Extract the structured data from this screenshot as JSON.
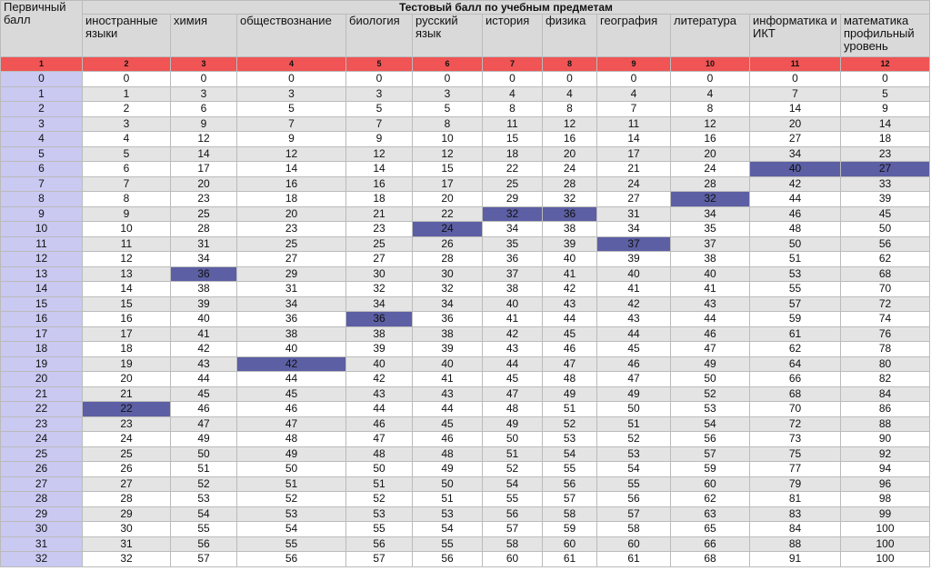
{
  "table": {
    "corner": "Первичный балл",
    "title": "Тестовый балл по учебным предметам",
    "columns": [
      "иностранные языки",
      "химия",
      "обществознание",
      "биология",
      "русский язык",
      "история",
      "физика",
      "география",
      "литература",
      "информатика и ИКТ",
      "математика профильный уровень"
    ],
    "numbers": [
      1,
      2,
      3,
      4,
      5,
      6,
      7,
      8,
      9,
      10,
      11,
      12
    ],
    "rows": [
      [
        0,
        0,
        0,
        0,
        0,
        0,
        0,
        0,
        0,
        0,
        0,
        0
      ],
      [
        1,
        1,
        3,
        3,
        3,
        3,
        4,
        4,
        4,
        4,
        7,
        5
      ],
      [
        2,
        2,
        6,
        5,
        5,
        5,
        8,
        8,
        7,
        8,
        14,
        9
      ],
      [
        3,
        3,
        9,
        7,
        7,
        8,
        11,
        12,
        11,
        12,
        20,
        14
      ],
      [
        4,
        4,
        12,
        9,
        9,
        10,
        15,
        16,
        14,
        16,
        27,
        18
      ],
      [
        5,
        5,
        14,
        12,
        12,
        12,
        18,
        20,
        17,
        20,
        34,
        23
      ],
      [
        6,
        6,
        17,
        14,
        14,
        15,
        22,
        24,
        21,
        24,
        40,
        27
      ],
      [
        7,
        7,
        20,
        16,
        16,
        17,
        25,
        28,
        24,
        28,
        42,
        33
      ],
      [
        8,
        8,
        23,
        18,
        18,
        20,
        29,
        32,
        27,
        32,
        44,
        39
      ],
      [
        9,
        9,
        25,
        20,
        21,
        22,
        32,
        36,
        31,
        34,
        46,
        45
      ],
      [
        10,
        10,
        28,
        23,
        23,
        24,
        34,
        38,
        34,
        35,
        48,
        50
      ],
      [
        11,
        11,
        31,
        25,
        25,
        26,
        35,
        39,
        37,
        37,
        50,
        56
      ],
      [
        12,
        12,
        34,
        27,
        27,
        28,
        36,
        40,
        39,
        38,
        51,
        62
      ],
      [
        13,
        13,
        36,
        29,
        30,
        30,
        37,
        41,
        40,
        40,
        53,
        68
      ],
      [
        14,
        14,
        38,
        31,
        32,
        32,
        38,
        42,
        41,
        41,
        55,
        70
      ],
      [
        15,
        15,
        39,
        34,
        34,
        34,
        40,
        43,
        42,
        43,
        57,
        72
      ],
      [
        16,
        16,
        40,
        36,
        36,
        36,
        41,
        44,
        43,
        44,
        59,
        74
      ],
      [
        17,
        17,
        41,
        38,
        38,
        38,
        42,
        45,
        44,
        46,
        61,
        76
      ],
      [
        18,
        18,
        42,
        40,
        39,
        39,
        43,
        46,
        45,
        47,
        62,
        78
      ],
      [
        19,
        19,
        43,
        42,
        40,
        40,
        44,
        47,
        46,
        49,
        64,
        80
      ],
      [
        20,
        20,
        44,
        44,
        42,
        41,
        45,
        48,
        47,
        50,
        66,
        82
      ],
      [
        21,
        21,
        45,
        45,
        43,
        43,
        47,
        49,
        49,
        52,
        68,
        84
      ],
      [
        22,
        22,
        46,
        46,
        44,
        44,
        48,
        51,
        50,
        53,
        70,
        86
      ],
      [
        23,
        23,
        47,
        47,
        46,
        45,
        49,
        52,
        51,
        54,
        72,
        88
      ],
      [
        24,
        24,
        49,
        48,
        47,
        46,
        50,
        53,
        52,
        56,
        73,
        90
      ],
      [
        25,
        25,
        50,
        49,
        48,
        48,
        51,
        54,
        53,
        57,
        75,
        92
      ],
      [
        26,
        26,
        51,
        50,
        50,
        49,
        52,
        55,
        54,
        59,
        77,
        94
      ],
      [
        27,
        27,
        52,
        51,
        51,
        50,
        54,
        56,
        55,
        60,
        79,
        96
      ],
      [
        28,
        28,
        53,
        52,
        52,
        51,
        55,
        57,
        56,
        62,
        81,
        98
      ],
      [
        29,
        29,
        54,
        53,
        53,
        53,
        56,
        58,
        57,
        63,
        83,
        99
      ],
      [
        30,
        30,
        55,
        54,
        55,
        54,
        57,
        59,
        58,
        65,
        84,
        100
      ],
      [
        31,
        31,
        56,
        55,
        56,
        55,
        58,
        60,
        60,
        66,
        88,
        100
      ],
      [
        32,
        32,
        57,
        56,
        57,
        56,
        60,
        61,
        61,
        68,
        91,
        100
      ]
    ],
    "highlight": {
      "color": "#5c5fa3",
      "cells": [
        [
          6,
          10
        ],
        [
          6,
          11
        ],
        [
          8,
          9
        ],
        [
          9,
          6
        ],
        [
          9,
          7
        ],
        [
          10,
          5
        ],
        [
          11,
          8
        ],
        [
          13,
          2
        ],
        [
          16,
          4
        ],
        [
          19,
          3
        ],
        [
          22,
          1
        ]
      ]
    }
  }
}
